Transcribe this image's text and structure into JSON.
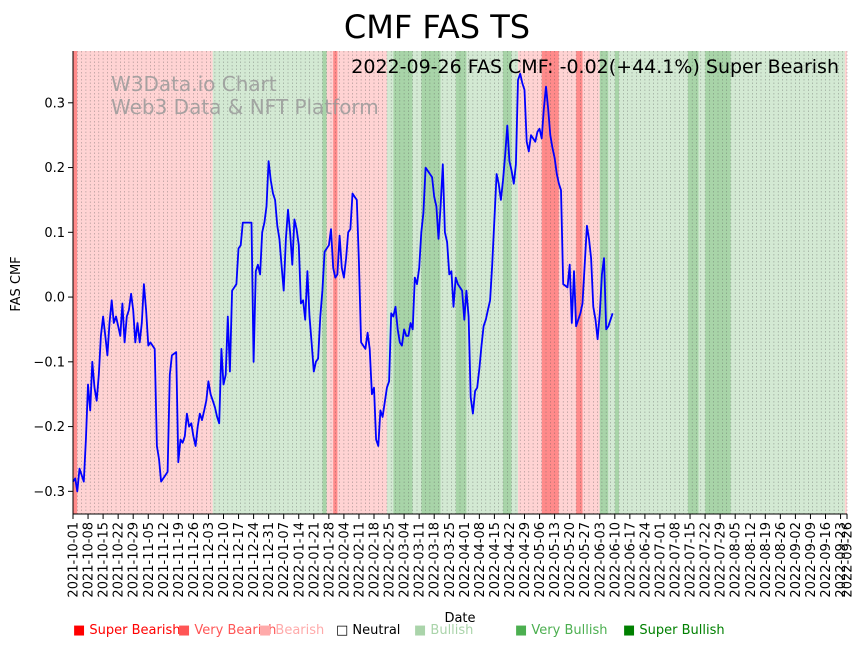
{
  "chart_data": {
    "type": "line",
    "title": "CMF FAS TS",
    "subtitle": "2022-09-26 FAS CMF: -0.02(+44.1%) Super Bearish",
    "watermark": [
      "W3Data.io Chart",
      "Web3 Data & NFT Platform"
    ],
    "xlabel": "Date",
    "ylabel": "FAS CMF",
    "ylim": [
      -0.335,
      0.38
    ],
    "yticks": [
      -0.3,
      -0.2,
      -0.1,
      0.0,
      0.1,
      0.2,
      0.3
    ],
    "ytick_labels": [
      "−0.3",
      "−0.2",
      "−0.1",
      "0.0",
      "0.1",
      "0.2",
      "0.3"
    ],
    "x_start": "2021-10-01",
    "x_end": "2022-09-26",
    "xtick_labels": [
      "2021-10-01",
      "2021-10-08",
      "2021-10-15",
      "2021-10-22",
      "2021-10-29",
      "2021-11-05",
      "2021-11-12",
      "2021-11-19",
      "2021-11-26",
      "2021-12-03",
      "2021-12-10",
      "2021-12-17",
      "2021-12-24",
      "2021-12-31",
      "2022-01-07",
      "2022-01-14",
      "2022-01-21",
      "2022-01-28",
      "2022-02-04",
      "2022-02-11",
      "2022-02-18",
      "2022-02-25",
      "2022-03-04",
      "2022-03-11",
      "2022-03-18",
      "2022-03-25",
      "2022-04-01",
      "2022-04-08",
      "2022-04-15",
      "2022-04-22",
      "2022-04-29",
      "2022-05-06",
      "2022-05-13",
      "2022-05-20",
      "2022-05-27",
      "2022-06-03",
      "2022-06-10",
      "2022-06-17",
      "2022-06-24",
      "2022-07-01",
      "2022-07-08",
      "2022-07-15",
      "2022-07-22",
      "2022-07-29",
      "2022-08-05",
      "2022-08-12",
      "2022-08-19",
      "2022-08-26",
      "2022-09-02",
      "2022-09-09",
      "2022-09-16",
      "2022-09-23",
      "2022-09-26"
    ],
    "bands": [
      {
        "start": 0,
        "end": 2,
        "state": "Very Bearish"
      },
      {
        "start": 2,
        "end": 6,
        "state": "Bearish"
      },
      {
        "start": 6,
        "end": 65,
        "state": "Bearish"
      },
      {
        "start": 65,
        "end": 67,
        "state": "Bullish"
      },
      {
        "start": 67,
        "end": 116,
        "state": "Bullish"
      },
      {
        "start": 116,
        "end": 118,
        "state": "Very Bullish"
      },
      {
        "start": 118,
        "end": 121,
        "state": "Bearish"
      },
      {
        "start": 121,
        "end": 123,
        "state": "Very Bearish"
      },
      {
        "start": 123,
        "end": 146,
        "state": "Bearish"
      },
      {
        "start": 146,
        "end": 149,
        "state": "Bullish"
      },
      {
        "start": 149,
        "end": 158,
        "state": "Very Bullish"
      },
      {
        "start": 158,
        "end": 162,
        "state": "Bullish"
      },
      {
        "start": 162,
        "end": 171,
        "state": "Very Bullish"
      },
      {
        "start": 171,
        "end": 178,
        "state": "Bullish"
      },
      {
        "start": 178,
        "end": 183,
        "state": "Very Bullish"
      },
      {
        "start": 183,
        "end": 200,
        "state": "Bullish"
      },
      {
        "start": 200,
        "end": 204,
        "state": "Very Bullish"
      },
      {
        "start": 204,
        "end": 207,
        "state": "Bullish"
      },
      {
        "start": 207,
        "end": 218,
        "state": "Bearish"
      },
      {
        "start": 218,
        "end": 226,
        "state": "Very Bearish"
      },
      {
        "start": 226,
        "end": 234,
        "state": "Bearish"
      },
      {
        "start": 234,
        "end": 237,
        "state": "Very Bearish"
      },
      {
        "start": 237,
        "end": 245,
        "state": "Bearish"
      },
      {
        "start": 245,
        "end": 249,
        "state": "Very Bullish"
      },
      {
        "start": 249,
        "end": 252,
        "state": "Bullish"
      },
      {
        "start": 252,
        "end": 254,
        "state": "Very Bullish"
      },
      {
        "start": 254,
        "end": 286,
        "state": "Bullish"
      },
      {
        "start": 286,
        "end": 291,
        "state": "Very Bullish"
      },
      {
        "start": 291,
        "end": 294,
        "state": "Bullish"
      },
      {
        "start": 294,
        "end": 306,
        "state": "Very Bullish"
      },
      {
        "start": 306,
        "end": 310,
        "state": "Bullish"
      },
      {
        "start": 310,
        "end": 365,
        "state": "Bullish"
      },
      {
        "start": 359,
        "end": 360,
        "state": "Bearish"
      },
      {
        "start": 360,
        "end": 361,
        "state": "Very Bearish"
      }
    ],
    "series": [
      {
        "name": "FAS CMF",
        "color": "#0000ff",
        "points": [
          [
            0,
            -0.285
          ],
          [
            1,
            -0.28
          ],
          [
            2,
            -0.3
          ],
          [
            3,
            -0.265
          ],
          [
            5,
            -0.285
          ],
          [
            6,
            -0.22
          ],
          [
            7,
            -0.135
          ],
          [
            8,
            -0.175
          ],
          [
            9,
            -0.1
          ],
          [
            10,
            -0.14
          ],
          [
            11,
            -0.16
          ],
          [
            12,
            -0.12
          ],
          [
            13,
            -0.06
          ],
          [
            14,
            -0.03
          ],
          [
            15,
            -0.06
          ],
          [
            16,
            -0.09
          ],
          [
            17,
            -0.04
          ],
          [
            18,
            -0.005
          ],
          [
            19,
            -0.04
          ],
          [
            20,
            -0.03
          ],
          [
            21,
            -0.045
          ],
          [
            22,
            -0.06
          ],
          [
            23,
            -0.01
          ],
          [
            24,
            -0.07
          ],
          [
            25,
            -0.03
          ],
          [
            26,
            -0.02
          ],
          [
            27,
            0.005
          ],
          [
            28,
            -0.02
          ],
          [
            29,
            -0.07
          ],
          [
            30,
            -0.04
          ],
          [
            31,
            -0.07
          ],
          [
            32,
            -0.04
          ],
          [
            33,
            0.02
          ],
          [
            34,
            -0.02
          ],
          [
            35,
            -0.075
          ],
          [
            36,
            -0.07
          ],
          [
            38,
            -0.08
          ],
          [
            39,
            -0.23
          ],
          [
            40,
            -0.25
          ],
          [
            41,
            -0.285
          ],
          [
            44,
            -0.27
          ],
          [
            45,
            -0.12
          ],
          [
            46,
            -0.09
          ],
          [
            48,
            -0.085
          ],
          [
            49,
            -0.255
          ],
          [
            50,
            -0.22
          ],
          [
            51,
            -0.225
          ],
          [
            52,
            -0.215
          ],
          [
            53,
            -0.18
          ],
          [
            54,
            -0.2
          ],
          [
            55,
            -0.195
          ],
          [
            56,
            -0.215
          ],
          [
            57,
            -0.23
          ],
          [
            58,
            -0.2
          ],
          [
            59,
            -0.18
          ],
          [
            60,
            -0.19
          ],
          [
            61,
            -0.175
          ],
          [
            62,
            -0.16
          ],
          [
            63,
            -0.13
          ],
          [
            64,
            -0.15
          ],
          [
            65,
            -0.16
          ],
          [
            66,
            -0.17
          ],
          [
            67,
            -0.185
          ],
          [
            68,
            -0.195
          ],
          [
            69,
            -0.08
          ],
          [
            70,
            -0.135
          ],
          [
            71,
            -0.12
          ],
          [
            72,
            -0.03
          ],
          [
            73,
            -0.115
          ],
          [
            74,
            0.01
          ],
          [
            75,
            0.015
          ],
          [
            76,
            0.02
          ],
          [
            77,
            0.075
          ],
          [
            78,
            0.08
          ],
          [
            79,
            0.115
          ],
          [
            83,
            0.115
          ],
          [
            84,
            -0.1
          ],
          [
            85,
            0.04
          ],
          [
            86,
            0.05
          ],
          [
            87,
            0.035
          ],
          [
            88,
            0.1
          ],
          [
            89,
            0.115
          ],
          [
            90,
            0.14
          ],
          [
            91,
            0.21
          ],
          [
            92,
            0.18
          ],
          [
            93,
            0.16
          ],
          [
            94,
            0.15
          ],
          [
            95,
            0.11
          ],
          [
            96,
            0.09
          ],
          [
            97,
            0.05
          ],
          [
            98,
            0.01
          ],
          [
            99,
            0.09
          ],
          [
            100,
            0.135
          ],
          [
            101,
            0.1
          ],
          [
            102,
            0.05
          ],
          [
            103,
            0.12
          ],
          [
            104,
            0.105
          ],
          [
            105,
            0.08
          ],
          [
            106,
            -0.01
          ],
          [
            107,
            -0.005
          ],
          [
            108,
            -0.035
          ],
          [
            109,
            0.04
          ],
          [
            110,
            -0.03
          ],
          [
            111,
            -0.07
          ],
          [
            112,
            -0.115
          ],
          [
            113,
            -0.1
          ],
          [
            114,
            -0.095
          ],
          [
            115,
            -0.03
          ],
          [
            116,
            0.01
          ],
          [
            117,
            0.07
          ],
          [
            118,
            0.075
          ],
          [
            119,
            0.08
          ],
          [
            120,
            0.105
          ],
          [
            121,
            0.045
          ],
          [
            122,
            0.03
          ],
          [
            123,
            0.035
          ],
          [
            124,
            0.095
          ],
          [
            125,
            0.045
          ],
          [
            126,
            0.03
          ],
          [
            127,
            0.06
          ],
          [
            128,
            0.1
          ],
          [
            129,
            0.105
          ],
          [
            130,
            0.16
          ],
          [
            131,
            0.155
          ],
          [
            132,
            0.15
          ],
          [
            133,
            0.055
          ],
          [
            134,
            -0.07
          ],
          [
            136,
            -0.08
          ],
          [
            137,
            -0.055
          ],
          [
            138,
            -0.08
          ],
          [
            139,
            -0.15
          ],
          [
            140,
            -0.14
          ],
          [
            141,
            -0.22
          ],
          [
            142,
            -0.23
          ],
          [
            143,
            -0.175
          ],
          [
            144,
            -0.185
          ],
          [
            146,
            -0.14
          ],
          [
            147,
            -0.13
          ],
          [
            148,
            -0.025
          ],
          [
            149,
            -0.03
          ],
          [
            150,
            -0.015
          ],
          [
            151,
            -0.05
          ],
          [
            152,
            -0.07
          ],
          [
            153,
            -0.075
          ],
          [
            154,
            -0.05
          ],
          [
            155,
            -0.06
          ],
          [
            156,
            -0.06
          ],
          [
            157,
            -0.04
          ],
          [
            158,
            -0.05
          ],
          [
            159,
            0.03
          ],
          [
            160,
            0.02
          ],
          [
            161,
            0.045
          ],
          [
            162,
            0.1
          ],
          [
            163,
            0.13
          ],
          [
            164,
            0.2
          ],
          [
            167,
            0.185
          ],
          [
            168,
            0.155
          ],
          [
            169,
            0.14
          ],
          [
            170,
            0.09
          ],
          [
            171,
            0.14
          ],
          [
            172,
            0.205
          ],
          [
            173,
            0.1
          ],
          [
            174,
            0.085
          ],
          [
            175,
            0.035
          ],
          [
            176,
            0.04
          ],
          [
            177,
            -0.015
          ],
          [
            178,
            0.03
          ],
          [
            179,
            0.02
          ],
          [
            181,
            0.01
          ],
          [
            182,
            -0.035
          ],
          [
            183,
            0.01
          ],
          [
            184,
            -0.03
          ],
          [
            185,
            -0.155
          ],
          [
            186,
            -0.18
          ],
          [
            187,
            -0.145
          ],
          [
            188,
            -0.14
          ],
          [
            189,
            -0.11
          ],
          [
            190,
            -0.075
          ],
          [
            191,
            -0.045
          ],
          [
            192,
            -0.035
          ],
          [
            193,
            -0.02
          ],
          [
            194,
            -0.005
          ],
          [
            195,
            0.05
          ],
          [
            196,
            0.12
          ],
          [
            197,
            0.19
          ],
          [
            198,
            0.175
          ],
          [
            199,
            0.15
          ],
          [
            200,
            0.18
          ],
          [
            201,
            0.22
          ],
          [
            202,
            0.265
          ],
          [
            203,
            0.21
          ],
          [
            204,
            0.195
          ],
          [
            205,
            0.175
          ],
          [
            206,
            0.205
          ],
          [
            207,
            0.335
          ],
          [
            208,
            0.345
          ],
          [
            209,
            0.33
          ],
          [
            210,
            0.32
          ],
          [
            211,
            0.24
          ],
          [
            212,
            0.225
          ],
          [
            213,
            0.25
          ],
          [
            214,
            0.245
          ],
          [
            215,
            0.24
          ],
          [
            216,
            0.255
          ],
          [
            217,
            0.26
          ],
          [
            218,
            0.245
          ],
          [
            219,
            0.29
          ],
          [
            220,
            0.325
          ],
          [
            221,
            0.29
          ],
          [
            222,
            0.25
          ],
          [
            223,
            0.23
          ],
          [
            224,
            0.215
          ],
          [
            225,
            0.19
          ],
          [
            226,
            0.175
          ],
          [
            227,
            0.165
          ],
          [
            228,
            0.02
          ],
          [
            230,
            0.015
          ],
          [
            231,
            0.05
          ],
          [
            232,
            -0.04
          ],
          [
            233,
            0.04
          ],
          [
            234,
            -0.045
          ],
          [
            236,
            -0.025
          ],
          [
            237,
            -0.01
          ],
          [
            238,
            0.05
          ],
          [
            239,
            0.11
          ],
          [
            240,
            0.09
          ],
          [
            241,
            0.06
          ],
          [
            242,
            -0.015
          ],
          [
            243,
            -0.035
          ],
          [
            244,
            -0.065
          ],
          [
            245,
            -0.025
          ],
          [
            246,
            0.035
          ],
          [
            247,
            0.06
          ],
          [
            248,
            -0.05
          ],
          [
            249,
            -0.045
          ],
          [
            251,
            -0.025
          ]
        ]
      }
    ],
    "legend": [
      {
        "label": "Super Bearish",
        "color": "#ff0000"
      },
      {
        "label": "Very Bearish",
        "color": "#ff5555"
      },
      {
        "label": "Bearish",
        "color": "#ffaaaa"
      },
      {
        "label": "Neutral",
        "color": "#000000"
      },
      {
        "label": "Bullish",
        "color": "#aad4aa"
      },
      {
        "label": "Very Bullish",
        "color": "#4caf50"
      },
      {
        "label": "Super Bullish",
        "color": "#008000"
      }
    ],
    "band_colors": {
      "Super Bearish": "#ff4d4d",
      "Very Bearish": "#ff8a8a",
      "Bearish": "#ffd3d3",
      "Bullish": "#d3e9d3",
      "Very Bullish": "#a8d4a8",
      "Super Bullish": "#7abd7a"
    }
  }
}
